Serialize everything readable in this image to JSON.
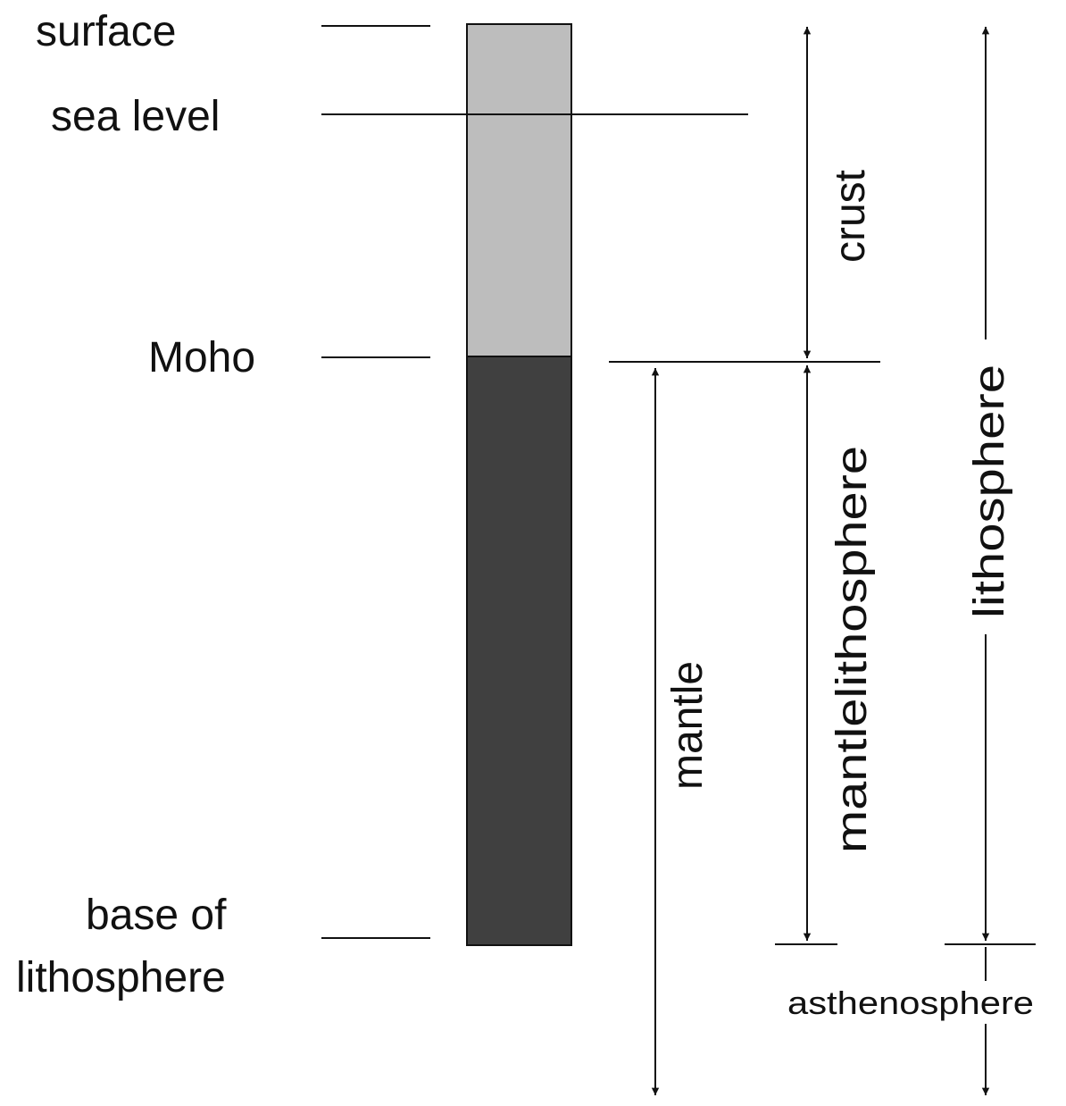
{
  "labels": {
    "surface": "surface",
    "sea_level": "sea level",
    "moho": "Moho",
    "base_line1": "base of",
    "base_line2": "lithosphere",
    "crust": "crust",
    "mantle": "mantle",
    "mantle_lithosphere": "mantlelithosphere",
    "lithosphere": "lithosphere",
    "asthenosphere": "asthenosphere"
  },
  "colors": {
    "crust_fill": "#bdbdbd",
    "mantle_fill": "#404040",
    "stroke": "#111111"
  }
}
